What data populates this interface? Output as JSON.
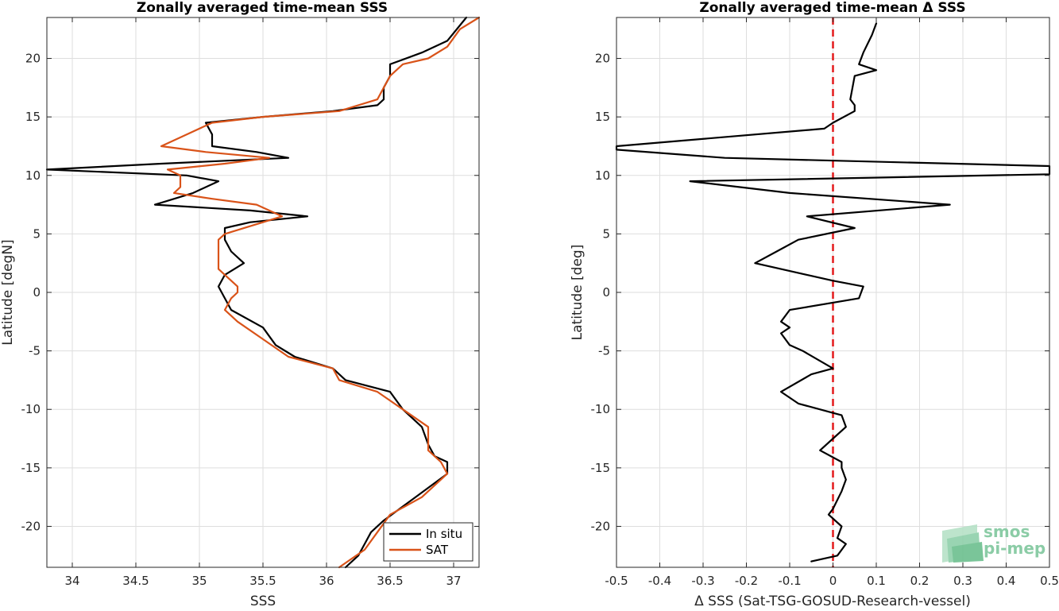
{
  "logo": {
    "line1": "smos",
    "line2": "pi-mep",
    "color": "#7fc79d"
  },
  "chart_data": [
    {
      "type": "line",
      "title": "Zonally averaged time-mean SSS",
      "xlabel": "SSS",
      "ylabel": "Latitude [degN]",
      "xlim": [
        33.8,
        37.2
      ],
      "ylim": [
        -23.5,
        23.5
      ],
      "xticks": [
        34,
        34.5,
        35,
        35.5,
        36,
        36.5,
        37
      ],
      "xtick_labels": [
        "34",
        "34.5",
        "35",
        "35.5",
        "36",
        "36.5",
        "37"
      ],
      "yticks": [
        -20,
        -15,
        -10,
        -5,
        0,
        5,
        10,
        15,
        20
      ],
      "ytick_labels": [
        "-20",
        "-15",
        "-10",
        "-5",
        "0",
        "5",
        "10",
        "15",
        "20"
      ],
      "grid": true,
      "legend": "bottom-right",
      "series": [
        {
          "name": "In situ",
          "color": "#000000",
          "points": [
            [
              37.1,
              23.5
            ],
            [
              36.95,
              21.5
            ],
            [
              36.75,
              20.5
            ],
            [
              36.5,
              19.5
            ],
            [
              36.5,
              18.5
            ],
            [
              36.45,
              17.5
            ],
            [
              36.45,
              16.5
            ],
            [
              36.4,
              16.0
            ],
            [
              36.05,
              15.5
            ],
            [
              35.5,
              15.0
            ],
            [
              35.05,
              14.5
            ],
            [
              35.1,
              13.5
            ],
            [
              35.1,
              12.5
            ],
            [
              35.45,
              12.0
            ],
            [
              35.7,
              11.5
            ],
            [
              34.7,
              11.0
            ],
            [
              33.8,
              10.5
            ],
            [
              34.9,
              10.0
            ],
            [
              35.15,
              9.5
            ],
            [
              34.95,
              8.5
            ],
            [
              34.65,
              7.5
            ],
            [
              35.4,
              7.0
            ],
            [
              35.85,
              6.5
            ],
            [
              35.4,
              6.0
            ],
            [
              35.2,
              5.5
            ],
            [
              35.2,
              4.5
            ],
            [
              35.25,
              3.5
            ],
            [
              35.35,
              2.5
            ],
            [
              35.2,
              1.5
            ],
            [
              35.15,
              0.5
            ],
            [
              35.2,
              -0.5
            ],
            [
              35.25,
              -1.5
            ],
            [
              35.5,
              -3.0
            ],
            [
              35.6,
              -4.5
            ],
            [
              35.75,
              -5.5
            ],
            [
              36.05,
              -6.5
            ],
            [
              36.15,
              -7.5
            ],
            [
              36.5,
              -8.5
            ],
            [
              36.6,
              -10.0
            ],
            [
              36.75,
              -11.5
            ],
            [
              36.8,
              -13.0
            ],
            [
              36.85,
              -14.0
            ],
            [
              36.95,
              -14.5
            ],
            [
              36.95,
              -15.5
            ],
            [
              36.7,
              -17.5
            ],
            [
              36.45,
              -19.5
            ],
            [
              36.35,
              -20.5
            ],
            [
              36.3,
              -21.5
            ],
            [
              36.25,
              -22.5
            ],
            [
              36.15,
              -23.5
            ]
          ]
        },
        {
          "name": "SAT",
          "color": "#d95319",
          "points": [
            [
              37.2,
              23.5
            ],
            [
              37.05,
              22.5
            ],
            [
              36.95,
              21.0
            ],
            [
              36.8,
              20.0
            ],
            [
              36.6,
              19.5
            ],
            [
              36.5,
              18.5
            ],
            [
              36.45,
              17.5
            ],
            [
              36.4,
              16.5
            ],
            [
              36.1,
              15.5
            ],
            [
              35.5,
              15.0
            ],
            [
              35.1,
              14.5
            ],
            [
              34.9,
              13.5
            ],
            [
              34.7,
              12.5
            ],
            [
              35.05,
              12.0
            ],
            [
              35.55,
              11.5
            ],
            [
              35.2,
              11.0
            ],
            [
              34.75,
              10.5
            ],
            [
              34.85,
              10.0
            ],
            [
              34.85,
              9.0
            ],
            [
              34.8,
              8.5
            ],
            [
              35.1,
              8.0
            ],
            [
              35.45,
              7.5
            ],
            [
              35.65,
              6.5
            ],
            [
              35.5,
              6.0
            ],
            [
              35.2,
              5.0
            ],
            [
              35.15,
              4.5
            ],
            [
              35.15,
              3.0
            ],
            [
              35.15,
              2.0
            ],
            [
              35.2,
              1.5
            ],
            [
              35.3,
              0.5
            ],
            [
              35.3,
              0.0
            ],
            [
              35.25,
              -0.5
            ],
            [
              35.2,
              -1.5
            ],
            [
              35.3,
              -2.5
            ],
            [
              35.5,
              -4.0
            ],
            [
              35.7,
              -5.5
            ],
            [
              36.05,
              -6.5
            ],
            [
              36.1,
              -7.5
            ],
            [
              36.4,
              -8.5
            ],
            [
              36.6,
              -10.0
            ],
            [
              36.8,
              -11.5
            ],
            [
              36.8,
              -13.5
            ],
            [
              36.9,
              -14.5
            ],
            [
              36.95,
              -15.5
            ],
            [
              36.75,
              -17.5
            ],
            [
              36.5,
              -19.0
            ],
            [
              36.4,
              -20.5
            ],
            [
              36.3,
              -22.0
            ],
            [
              36.1,
              -23.5
            ]
          ]
        }
      ]
    },
    {
      "type": "line",
      "title": "Zonally averaged time-mean Δ SSS",
      "xlabel": "Δ SSS (Sat-TSG-GOSUD-Research-vessel)",
      "ylabel": "Latitude [deg]",
      "xlim": [
        -0.5,
        0.5
      ],
      "ylim": [
        -23.5,
        23.5
      ],
      "xticks": [
        -0.5,
        -0.4,
        -0.3,
        -0.2,
        -0.1,
        0,
        0.1,
        0.2,
        0.3,
        0.4,
        0.5
      ],
      "xtick_labels": [
        "-0.5",
        "-0.4",
        "-0.3",
        "-0.2",
        "-0.1",
        "0",
        "0.1",
        "0.2",
        "0.3",
        "0.4",
        "0.5"
      ],
      "yticks": [
        -20,
        -15,
        -10,
        -5,
        0,
        5,
        10,
        15,
        20
      ],
      "ytick_labels": [
        "-20",
        "-15",
        "-10",
        "-5",
        "0",
        "5",
        "10",
        "15",
        "20"
      ],
      "grid": true,
      "reference_line": {
        "x": 0,
        "color": "#e41a1c",
        "style": "dashed"
      },
      "series": [
        {
          "color": "#000000",
          "points": [
            [
              0.1,
              23.0
            ],
            [
              0.09,
              22.0
            ],
            [
              0.07,
              20.5
            ],
            [
              0.06,
              19.5
            ],
            [
              0.1,
              19.0
            ],
            [
              0.05,
              18.5
            ],
            [
              0.04,
              16.5
            ],
            [
              0.05,
              16.0
            ],
            [
              0.05,
              15.5
            ],
            [
              0.0,
              14.5
            ],
            [
              -0.02,
              14.0
            ],
            [
              -0.5,
              12.5
            ],
            [
              -0.5,
              12.2
            ],
            [
              -0.25,
              11.5
            ],
            [
              0.5,
              10.8
            ],
            [
              0.5,
              10.1
            ],
            [
              -0.33,
              9.5
            ],
            [
              -0.1,
              8.5
            ],
            [
              0.27,
              7.5
            ],
            [
              -0.06,
              6.5
            ],
            [
              0.05,
              5.5
            ],
            [
              -0.08,
              4.5
            ],
            [
              -0.13,
              3.5
            ],
            [
              -0.18,
              2.5
            ],
            [
              0.0,
              1.0
            ],
            [
              0.07,
              0.5
            ],
            [
              0.06,
              -0.5
            ],
            [
              -0.1,
              -1.5
            ],
            [
              -0.12,
              -2.5
            ],
            [
              -0.1,
              -3.0
            ],
            [
              -0.12,
              -3.5
            ],
            [
              -0.1,
              -4.5
            ],
            [
              -0.07,
              -5.0
            ],
            [
              0.0,
              -6.5
            ],
            [
              -0.05,
              -7.0
            ],
            [
              -0.12,
              -8.5
            ],
            [
              -0.08,
              -9.5
            ],
            [
              0.0,
              -10.3
            ],
            [
              0.02,
              -10.5
            ],
            [
              0.03,
              -11.5
            ],
            [
              0.0,
              -12.5
            ],
            [
              -0.03,
              -13.5
            ],
            [
              0.02,
              -14.5
            ],
            [
              0.02,
              -15.0
            ],
            [
              0.03,
              -16.0
            ],
            [
              0.02,
              -17.0
            ],
            [
              0.0,
              -18.5
            ],
            [
              -0.01,
              -19.0
            ],
            [
              0.02,
              -20.0
            ],
            [
              0.01,
              -21.0
            ],
            [
              0.03,
              -21.5
            ],
            [
              0.01,
              -22.5
            ],
            [
              -0.05,
              -23.0
            ]
          ]
        }
      ]
    }
  ]
}
